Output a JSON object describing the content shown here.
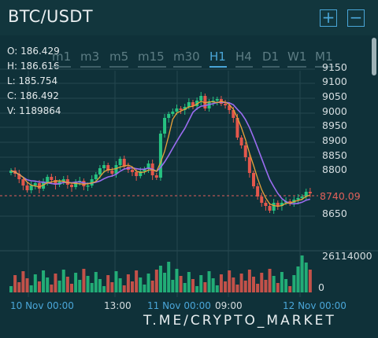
{
  "header": {
    "title": "BTC/USDT",
    "zoom_in_icon": "plus-icon",
    "zoom_out_icon": "minus-icon"
  },
  "ohlc": {
    "open": "O: 186.429",
    "high": "H: 186.616",
    "low": "L: 185.754",
    "close": "C: 186.492",
    "volume": "V: 1189864"
  },
  "timeframes": [
    "m1",
    "m3",
    "m5",
    "m15",
    "m30",
    "H1",
    "H4",
    "D1",
    "W1",
    "M1"
  ],
  "active_timeframe": "H1",
  "price_axis": [
    "9150",
    "9100",
    "9050",
    "9000",
    "8950",
    "8900",
    "8850",
    "8800",
    "8650"
  ],
  "current_price": "8740.09",
  "volume_axis": [
    "26114000",
    "0"
  ],
  "time_axis": [
    "10 Nov 00:00",
    "13:00",
    "11 Nov 00:00",
    "09:00",
    "12 Nov 00:00"
  ],
  "watermark": "T.ME/CRYPTO_MARKET",
  "colors": {
    "up": "#26c281",
    "down": "#e3574c",
    "ma_fast": "#e8a23a",
    "ma_slow": "#9a6cf0",
    "accent": "#4aa6d8",
    "price_line": "#e0605a"
  }
}
